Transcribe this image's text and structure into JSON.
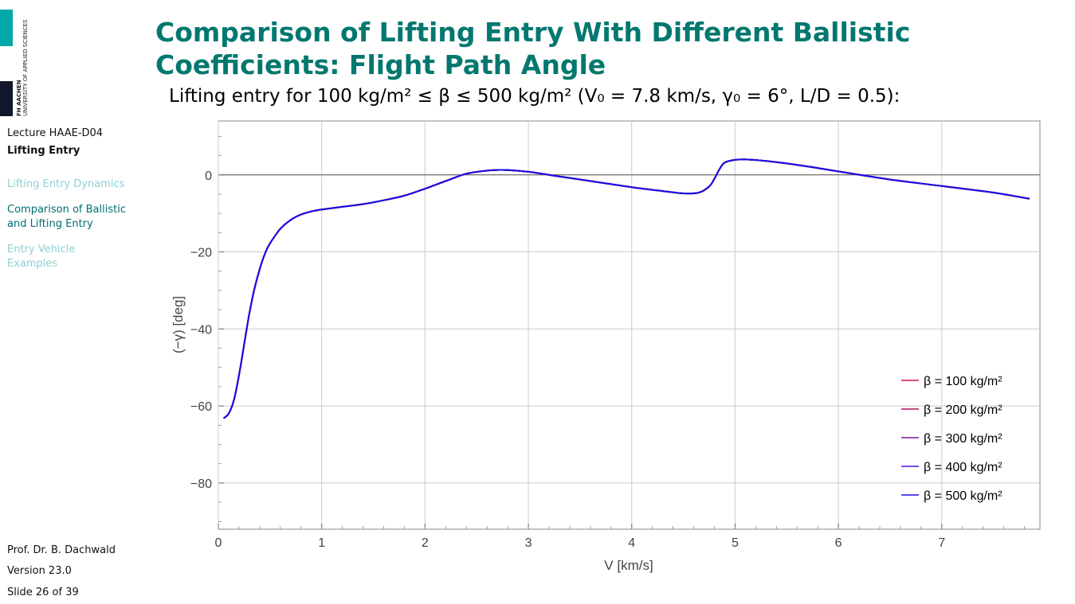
{
  "logo": {
    "bold_text": "FH AACHEN",
    "text": "UNIVERSITY OF APPLIED SCIENCES"
  },
  "sidebar": {
    "lecture": "Lecture HAAE-D04",
    "lecture_sub": "Lifting Entry",
    "nav_items": [
      {
        "label": "Lifting Entry Dynamics",
        "state": "dim"
      },
      {
        "label": "Comparison of Ballistic and Lifting Entry",
        "state": "active"
      },
      {
        "label": "Entry Vehicle Examples",
        "state": "dim"
      }
    ],
    "author": "Prof. Dr. B. Dachwald",
    "version": "Version 23.0",
    "slide": "Slide 26 of 39"
  },
  "slide": {
    "title": "Comparison of Lifting Entry With Different Ballistic Coefficients: Flight Path Angle",
    "subtitle": "Lifting entry for 100 kg/m² ≤ β ≤ 500 kg/m² (V₀ = 7.8 km/s, γ₀ = 6°, L/D = 0.5):"
  },
  "colors": {
    "title": "#00786f",
    "accent_teal": "#00a8a8",
    "nav_dim": "#8fd0d0",
    "nav_active": "#006e6e"
  },
  "chart_data": {
    "type": "line",
    "title": "",
    "xlabel": "V [km/s]",
    "ylabel": "(−γ) [deg]",
    "xlim": [
      0,
      7.95
    ],
    "ylim": [
      -92,
      14
    ],
    "xticks": [
      0,
      1,
      2,
      3,
      4,
      5,
      6,
      7
    ],
    "yticks": [
      -80,
      -60,
      -40,
      -20,
      0
    ],
    "grid": true,
    "legend_position": "bottom-right",
    "series": [
      {
        "name": "β = 100 kg/m²",
        "color": "#d0103a"
      },
      {
        "name": "β = 200 kg/m²",
        "color": "#b01060"
      },
      {
        "name": "β = 300 kg/m²",
        "color": "#8010a8"
      },
      {
        "name": "β = 400 kg/m²",
        "color": "#5010d8"
      },
      {
        "name": "β = 500 kg/m²",
        "color": "#1a10e0"
      }
    ],
    "x": [
      0.05,
      0.1,
      0.15,
      0.2,
      0.25,
      0.3,
      0.35,
      0.4,
      0.45,
      0.5,
      0.6,
      0.7,
      0.8,
      0.9,
      1.0,
      1.2,
      1.4,
      1.6,
      1.8,
      2.0,
      2.2,
      2.4,
      2.6,
      2.75,
      3.0,
      3.3,
      3.6,
      4.0,
      4.3,
      4.5,
      4.65,
      4.75,
      4.8,
      4.85,
      4.9,
      5.0,
      5.1,
      5.3,
      5.6,
      6.0,
      6.5,
      7.0,
      7.5,
      7.85
    ],
    "y": [
      -63.2,
      -62.0,
      -58.5,
      -52.0,
      -44.0,
      -36.0,
      -29.5,
      -24.5,
      -20.5,
      -17.8,
      -14.0,
      -11.7,
      -10.3,
      -9.5,
      -9.0,
      -8.3,
      -7.6,
      -6.6,
      -5.4,
      -3.6,
      -1.6,
      0.3,
      1.1,
      1.3,
      0.8,
      -0.4,
      -1.6,
      -3.2,
      -4.2,
      -4.8,
      -4.6,
      -3.0,
      -1.0,
      1.5,
      3.2,
      3.9,
      4.0,
      3.6,
      2.6,
      0.9,
      -1.2,
      -2.9,
      -4.6,
      -6.2
    ]
  }
}
